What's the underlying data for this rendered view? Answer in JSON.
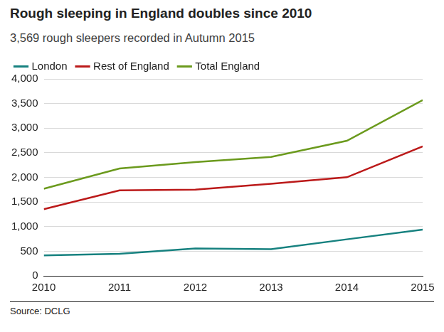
{
  "chart_data": {
    "type": "line",
    "title": "Rough sleeping in England doubles since 2010",
    "subtitle": "3,569 rough sleepers recorded in Autumn 2015",
    "source": "Source: DCLG",
    "categories": [
      "2010",
      "2011",
      "2012",
      "2013",
      "2014",
      "2015"
    ],
    "series": [
      {
        "name": "London",
        "color": "#16817f",
        "values": [
          415,
          446,
          557,
          543,
          742,
          940
        ]
      },
      {
        "name": "Rest of England",
        "color": "#bb1919",
        "values": [
          1353,
          1735,
          1752,
          1871,
          2002,
          2629
        ]
      },
      {
        "name": "Total England",
        "color": "#6b9a1d",
        "values": [
          1768,
          2181,
          2309,
          2414,
          2744,
          3569
        ]
      }
    ],
    "ylim": [
      0,
      4000
    ],
    "yticks": [
      0,
      500,
      {
        "value": 1000,
        "label": "1,000"
      },
      {
        "value": 1500,
        "label": "1,500"
      },
      {
        "value": 2000,
        "label": "2,000"
      },
      {
        "value": 2500,
        "label": "2,500"
      },
      {
        "value": 3000,
        "label": "3,000"
      },
      {
        "value": 3500,
        "label": "3,500"
      },
      {
        "value": 4000,
        "label": "4,000"
      }
    ],
    "grid": true,
    "legend": "top"
  }
}
